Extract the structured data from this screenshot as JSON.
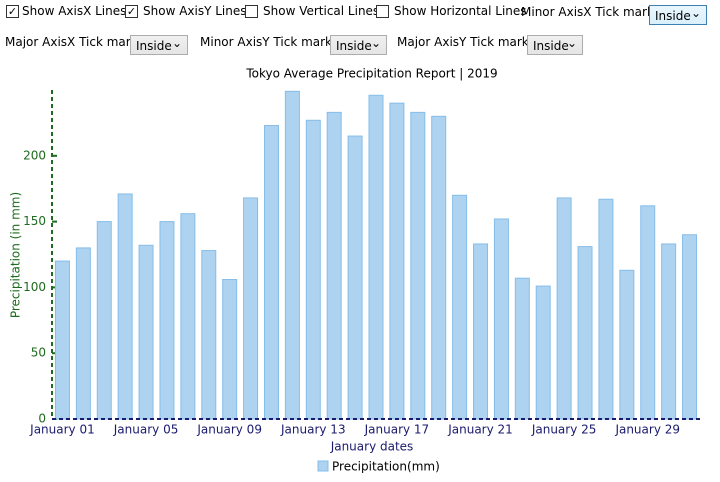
{
  "controls": {
    "checkboxes": [
      {
        "label": "Show AxisX Lines",
        "checked": true
      },
      {
        "label": "Show AxisY Lines",
        "checked": true
      },
      {
        "label": "Show Vertical Lines",
        "checked": false
      },
      {
        "label": "Show Horizontal Lines",
        "checked": false
      }
    ],
    "dropdowns": [
      {
        "label": "Minor AxisX Tick marks:",
        "value": "Inside"
      },
      {
        "label": "Major AxisX Tick marks:",
        "value": "Inside"
      },
      {
        "label": "Minor AxisY Tick marks:",
        "value": "Inside"
      },
      {
        "label": "Major AxisY Tick marks:",
        "value": "Inside"
      }
    ]
  },
  "chart_data": {
    "type": "bar",
    "title": "Tokyo Average Precipitation Report | 2019",
    "x_label": "January dates",
    "y_label": "Precipitation (in mm)",
    "categories": [
      "January 01",
      null,
      null,
      null,
      "January 05",
      null,
      null,
      null,
      "January 09",
      null,
      null,
      null,
      "January 13",
      null,
      null,
      null,
      "January 17",
      null,
      null,
      null,
      "January 21",
      null,
      null,
      null,
      "January 25",
      null,
      null,
      null,
      "January 29",
      null,
      null
    ],
    "series": [
      {
        "name": "Precipitation(mm)",
        "color": "#aed3f0",
        "values": [
          120,
          130,
          150,
          171,
          132,
          150,
          156,
          128,
          106,
          168,
          223,
          249,
          227,
          233,
          215,
          246,
          240,
          233,
          230,
          170,
          133,
          152,
          107,
          101,
          168,
          131,
          167,
          113,
          162,
          133,
          140
        ]
      }
    ],
    "ylim": [
      0,
      250
    ],
    "yticks": [
      0,
      50,
      100,
      150,
      200
    ],
    "grid": false
  }
}
